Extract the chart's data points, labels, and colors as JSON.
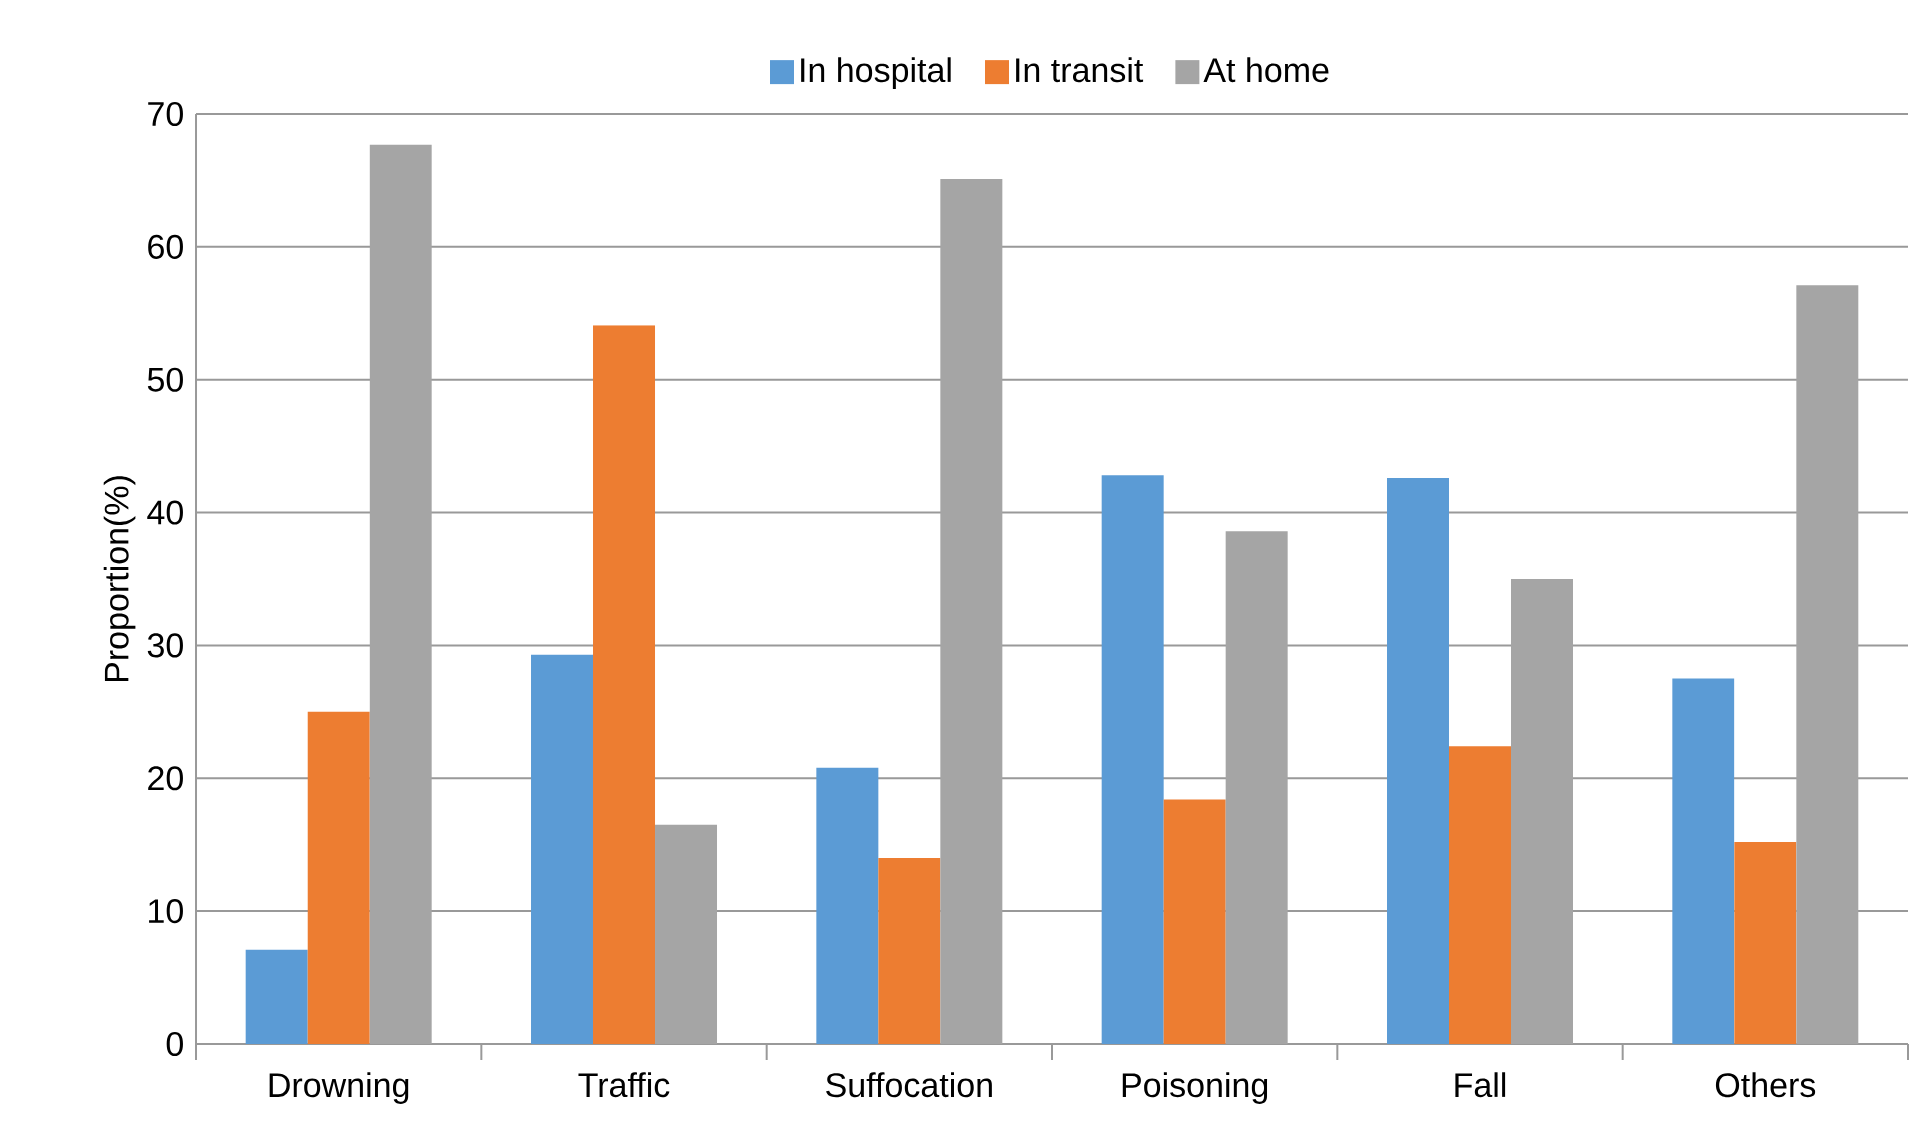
{
  "chart_data": {
    "type": "bar",
    "ylabel": "Proportion(%)",
    "categories": [
      "Drowning",
      "Traffic",
      "Suffocation",
      "Poisoning",
      "Fall",
      "Others"
    ],
    "series": [
      {
        "name": "In hospital",
        "color": "#5b9bd5",
        "values": [
          7.1,
          29.3,
          20.8,
          42.8,
          42.6,
          27.5
        ]
      },
      {
        "name": "In transit",
        "color": "#ed7d31",
        "values": [
          25.0,
          54.1,
          14.0,
          18.4,
          22.4,
          15.2
        ]
      },
      {
        "name": "At home",
        "color": "#a5a5a5",
        "values": [
          67.7,
          16.5,
          65.1,
          38.6,
          35.0,
          57.1
        ]
      }
    ],
    "ylim": [
      0,
      70
    ],
    "yticks": [
      0,
      10,
      20,
      30,
      40,
      50,
      60,
      70
    ],
    "grid": "y",
    "legend": "top"
  }
}
